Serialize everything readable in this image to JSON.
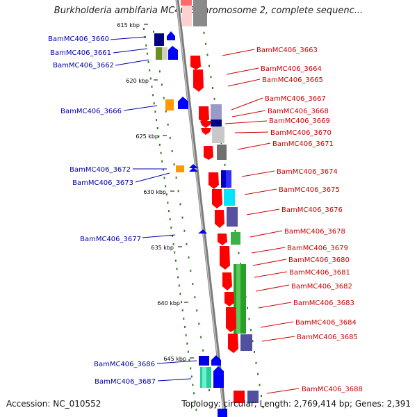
{
  "title": "Burkholderia ambifaria MC40-6 chromosome 2, complete sequenc...",
  "footer": {
    "accession": "Accession: NC_010552",
    "topology": "Topology: circular; Length: 2,769,414 bp; Genes: 2,391"
  },
  "colors": {
    "backbone": "#8c8c8c",
    "dots": "#2e7d1f",
    "left_labels": "#0000aa",
    "right_labels": "#cc0000",
    "forward_strand": "#ff0000",
    "reverse_strand": "#0000ff"
  },
  "ticks": [
    "615 kbp",
    "620 kbp",
    "625 kbp",
    "630 kbp",
    "635 kbp",
    "640 kbp",
    "645 kbp"
  ],
  "left_genes": [
    "BamMC406_3660",
    "BamMC406_3661",
    "BamMC406_3662",
    "BamMC406_3666",
    "BamMC406_3672",
    "BamMC406_3673",
    "BamMC406_3677",
    "BamMC406_3686",
    "BamMC406_3687"
  ],
  "right_genes": [
    "BamMC406_3663",
    "BamMC406_3664",
    "BamMC406_3665",
    "BamMC406_3667",
    "BamMC406_3668",
    "BamMC406_3669",
    "BamMC406_3670",
    "BamMC406_3671",
    "BamMC406_3674",
    "BamMC406_3675",
    "BamMC406_3676",
    "BamMC406_3678",
    "BamMC406_3679",
    "BamMC406_3680",
    "BamMC406_3681",
    "BamMC406_3682",
    "BamMC406_3683",
    "BamMC406_3684",
    "BamMC406_3685",
    "BamMC406_3688"
  ]
}
